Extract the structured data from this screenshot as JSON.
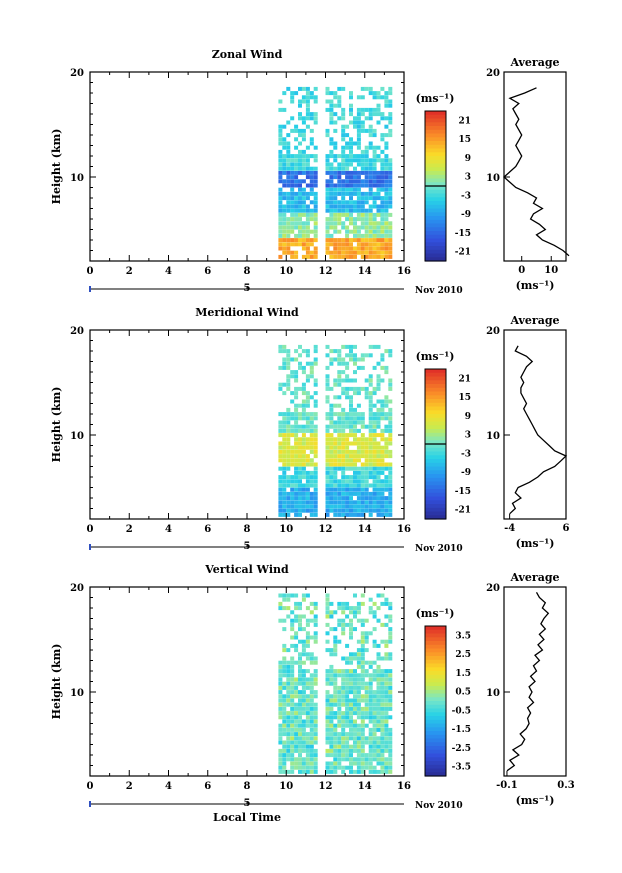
{
  "chart_data": [
    {
      "type": "heatmap",
      "title": "Zonal Wind",
      "ylabel": "Height (km)",
      "ylim": [
        2,
        20
      ],
      "xlim": [
        0,
        16
      ],
      "xticks": [
        "0",
        "2",
        "4",
        "6",
        "8",
        "10",
        "12",
        "14",
        "16"
      ],
      "yticks": [
        "10",
        "20"
      ],
      "secondary_axis": {
        "label": "5",
        "note": "Nov 2010"
      },
      "colorbar": {
        "unit": "(ms⁻¹)",
        "ticks": [
          "21",
          "15",
          "9",
          "3",
          "-3",
          "-9",
          "-15",
          "-21"
        ],
        "range": [
          -24,
          24
        ]
      },
      "data_coverage": {
        "x": [
          9.6,
          15.3
        ],
        "gap_x": [
          11.4,
          11.9
        ],
        "y_top_km": 18.5
      },
      "profile": {
        "title": "Average",
        "xlabel": "(ms⁻¹)",
        "xticks": [
          "0",
          "10"
        ],
        "xlim": [
          -6,
          15
        ],
        "yticks": [
          "10",
          "20"
        ],
        "height_km": [
          2.5,
          3.0,
          3.5,
          4.0,
          4.5,
          5.0,
          5.5,
          6.0,
          6.5,
          7.0,
          7.5,
          8.0,
          8.5,
          9.0,
          9.5,
          10.0,
          10.5,
          11.0,
          11.5,
          12.0,
          12.5,
          13.0,
          13.5,
          14.0,
          14.5,
          15.0,
          15.5,
          16.0,
          16.5,
          17.0,
          17.5,
          18.0,
          18.5
        ],
        "value": [
          16,
          14,
          11,
          7,
          5,
          8,
          6,
          3,
          4,
          7,
          4,
          5,
          2,
          -2,
          -4,
          -6,
          -4,
          -2,
          -1,
          0,
          -1,
          -2,
          -1,
          0,
          -1,
          -2,
          -1,
          -2,
          -3,
          -1,
          -4,
          1,
          5
        ]
      }
    },
    {
      "type": "heatmap",
      "title": "Meridional Wind",
      "ylabel": "Height (km)",
      "ylim": [
        2,
        20
      ],
      "xlim": [
        0,
        16
      ],
      "xticks": [
        "0",
        "2",
        "4",
        "6",
        "8",
        "10",
        "12",
        "14",
        "16"
      ],
      "yticks": [
        "10",
        "20"
      ],
      "secondary_axis": {
        "label": "5",
        "note": "Nov 2010"
      },
      "colorbar": {
        "unit": "(ms⁻¹)",
        "ticks": [
          "21",
          "15",
          "9",
          "3",
          "-3",
          "-9",
          "-15",
          "-21"
        ],
        "range": [
          -24,
          24
        ]
      },
      "data_coverage": {
        "x": [
          9.6,
          15.3
        ],
        "gap_x": [
          11.4,
          11.9
        ],
        "y_top_km": 18.5
      },
      "profile": {
        "title": "Average",
        "xlabel": "(ms⁻¹)",
        "xticks": [
          "-4",
          "6"
        ],
        "xlim": [
          -5,
          6
        ],
        "yticks": [
          "10",
          "20"
        ],
        "height_km": [
          2.5,
          3.0,
          3.5,
          4.0,
          4.5,
          5.0,
          5.5,
          6.0,
          6.5,
          7.0,
          7.5,
          8.0,
          8.5,
          9.0,
          9.5,
          10.0,
          10.5,
          11.0,
          11.5,
          12.0,
          12.5,
          13.0,
          13.5,
          14.0,
          14.5,
          15.0,
          15.5,
          16.0,
          16.5,
          17.0,
          17.5,
          18.0,
          18.5
        ],
        "value": [
          -4,
          -3,
          -3.5,
          -2,
          -3,
          -2.5,
          -0.5,
          1,
          2,
          4,
          5,
          6,
          4,
          3,
          2,
          1,
          0.5,
          0,
          -0.5,
          -1,
          -1.5,
          -1,
          -1.5,
          -2,
          -2,
          -1.5,
          -2,
          -1.5,
          -1,
          0,
          -1,
          -3,
          -2.5
        ]
      }
    },
    {
      "type": "heatmap",
      "title": "Vertical Wind",
      "ylabel": "Height (km)",
      "xlabel": "Local Time",
      "ylim": [
        2,
        20
      ],
      "xlim": [
        0,
        16
      ],
      "xticks": [
        "0",
        "2",
        "4",
        "6",
        "8",
        "10",
        "12",
        "14",
        "16"
      ],
      "yticks": [
        "10",
        "20"
      ],
      "secondary_axis": {
        "label": "5",
        "note": "Nov 2010"
      },
      "colorbar": {
        "unit": "(ms⁻¹)",
        "ticks": [
          "3.5",
          "2.5",
          "1.5",
          "0.5",
          "-0.5",
          "-1.5",
          "-2.5",
          "-3.5"
        ],
        "range": [
          -4,
          4
        ]
      },
      "data_coverage": {
        "x": [
          9.6,
          15.3
        ],
        "gap_x": [
          11.4,
          11.9
        ],
        "y_top_km": 19.2
      },
      "profile": {
        "title": "Average",
        "xlabel": "(ms⁻¹)",
        "xticks": [
          "-0.1",
          "0.3"
        ],
        "xlim": [
          -0.12,
          0.3
        ],
        "yticks": [
          "10",
          "20"
        ],
        "height_km": [
          2.5,
          3.0,
          3.5,
          4.0,
          4.5,
          5.0,
          5.5,
          6.0,
          6.5,
          7.0,
          7.5,
          8.0,
          8.5,
          9.0,
          9.5,
          10.0,
          10.5,
          11.0,
          11.5,
          12.0,
          12.5,
          13.0,
          13.5,
          14.0,
          14.5,
          15.0,
          15.5,
          16.0,
          16.5,
          17.0,
          17.5,
          18.0,
          18.5,
          19.0,
          19.5
        ],
        "value": [
          -0.1,
          -0.05,
          -0.08,
          -0.02,
          -0.06,
          0.0,
          0.02,
          -0.01,
          0.03,
          0.05,
          0.04,
          0.06,
          0.04,
          0.08,
          0.05,
          0.07,
          0.05,
          0.09,
          0.06,
          0.1,
          0.08,
          0.12,
          0.09,
          0.14,
          0.11,
          0.15,
          0.12,
          0.16,
          0.13,
          0.15,
          0.18,
          0.14,
          0.16,
          0.12,
          0.1
        ]
      }
    }
  ]
}
